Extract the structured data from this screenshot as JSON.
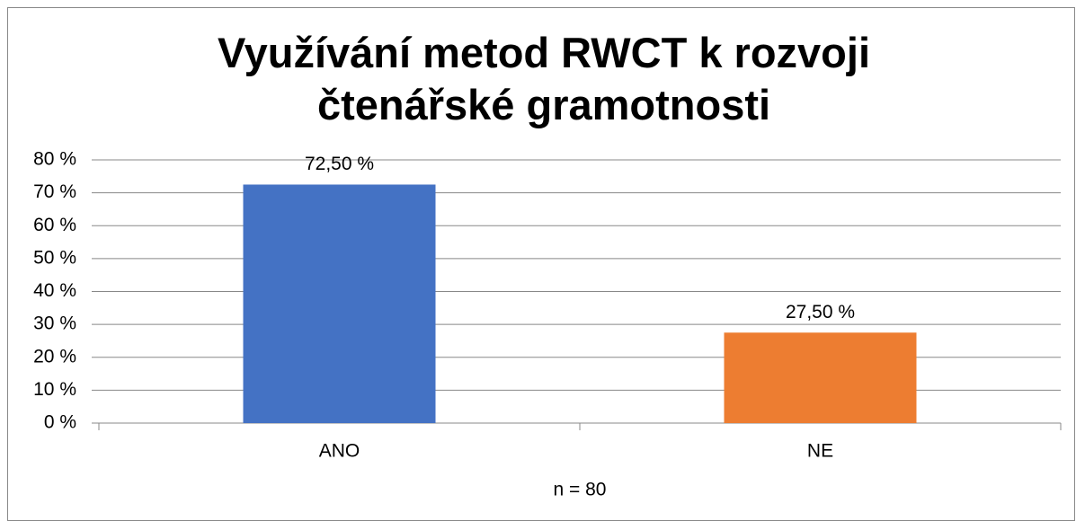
{
  "chart_data": {
    "type": "bar",
    "title": "Využívání metod RWCT k rozvoji čtenářské gramotnosti",
    "categories": [
      "ANO",
      "NE"
    ],
    "values": [
      72.5,
      27.5
    ],
    "value_labels": [
      "72,50 %",
      "27,50 %"
    ],
    "colors": [
      "#4472c4",
      "#ed7d31"
    ],
    "xlabel": "n = 80",
    "ylim": [
      0,
      80
    ],
    "yticks": [
      {
        "value": 0,
        "label": "0 %"
      },
      {
        "value": 10,
        "label": "10 %"
      },
      {
        "value": 20,
        "label": "20 %"
      },
      {
        "value": 30,
        "label": "30 %"
      },
      {
        "value": 40,
        "label": "40 %"
      },
      {
        "value": 50,
        "label": "50 %"
      },
      {
        "value": 60,
        "label": "60 %"
      },
      {
        "value": 70,
        "label": "70 %"
      },
      {
        "value": 80,
        "label": "80 %"
      }
    ],
    "grid": true
  }
}
